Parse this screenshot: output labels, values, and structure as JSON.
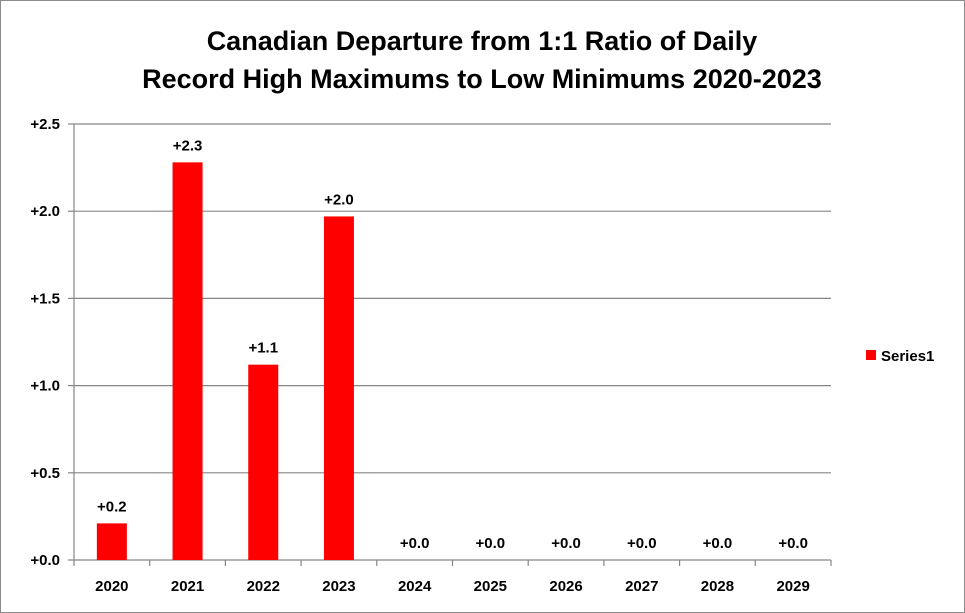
{
  "chart_data": {
    "type": "bar",
    "title": [
      "Canadian Departure from 1:1 Ratio of Daily",
      "Record High Maximums to Low Minimums 2020-2023"
    ],
    "categories": [
      "2020",
      "2021",
      "2022",
      "2023",
      "2024",
      "2025",
      "2026",
      "2027",
      "2028",
      "2029"
    ],
    "series": [
      {
        "name": "Series1",
        "values": [
          0.21,
          2.28,
          1.12,
          1.97,
          0,
          0,
          0,
          0,
          0,
          0
        ],
        "data_labels": [
          "+0.2",
          "+2.3",
          "+1.1",
          "+2.0",
          "+0.0",
          "+0.0",
          "+0.0",
          "+0.0",
          "+0.0",
          "+0.0"
        ],
        "color": "#ff0000"
      }
    ],
    "y_ticks": [
      0,
      0.5,
      1.0,
      1.5,
      2.0,
      2.5
    ],
    "y_tick_labels": [
      "+0.0",
      "+0.5",
      "+1.0",
      "+1.5",
      "+2.0",
      "+2.5"
    ],
    "ylim": [
      0,
      2.5
    ],
    "xlabel": "",
    "ylabel": "",
    "grid": true,
    "legend_position": "right"
  }
}
